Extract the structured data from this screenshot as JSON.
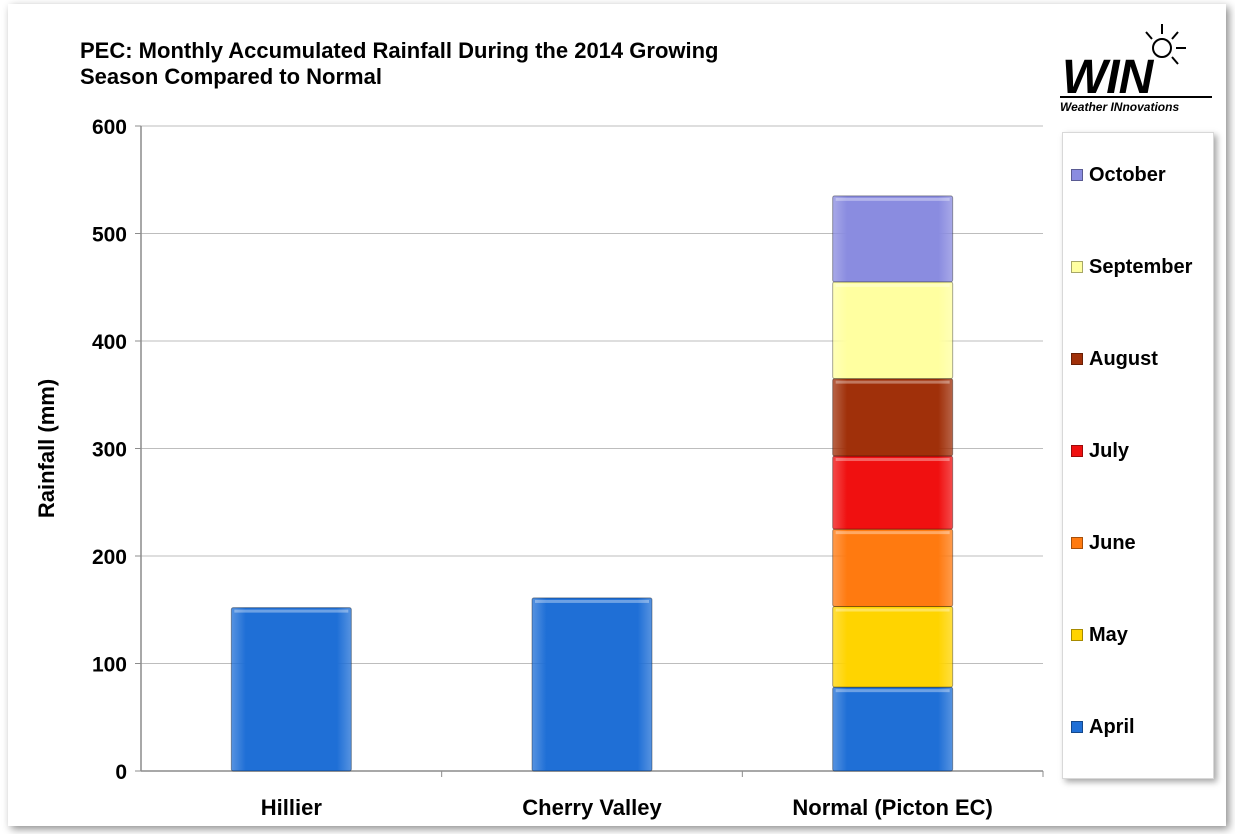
{
  "chart_data": {
    "type": "bar",
    "stacked": true,
    "title": "PEC: Monthly Accumulated Rainfall During the 2014 Growing Season Compared to Normal",
    "ylabel": "Rainfall (mm)",
    "xlabel": "",
    "ylim": [
      0,
      600
    ],
    "yticks": [
      0,
      100,
      200,
      300,
      400,
      500,
      600
    ],
    "grid": true,
    "legend_position": "right",
    "categories": [
      "Hillier",
      "Cherry Valley",
      "Normal (Picton EC)"
    ],
    "series": [
      {
        "name": "April",
        "color": "#1f6fd6",
        "values": [
          152,
          161,
          78
        ]
      },
      {
        "name": "May",
        "color": "#ffd400",
        "values": [
          0,
          0,
          75
        ]
      },
      {
        "name": "June",
        "color": "#ff7a10",
        "values": [
          0,
          0,
          72
        ]
      },
      {
        "name": "July",
        "color": "#f01010",
        "values": [
          0,
          0,
          68
        ]
      },
      {
        "name": "August",
        "color": "#a0300a",
        "values": [
          0,
          0,
          72
        ]
      },
      {
        "name": "September",
        "color": "#ffffa0",
        "values": [
          0,
          0,
          90
        ]
      },
      {
        "name": "October",
        "color": "#8a8ce0",
        "values": [
          0,
          0,
          80
        ]
      }
    ]
  },
  "logo": {
    "text": "WIN",
    "subtitle": "Weather INnovations"
  }
}
